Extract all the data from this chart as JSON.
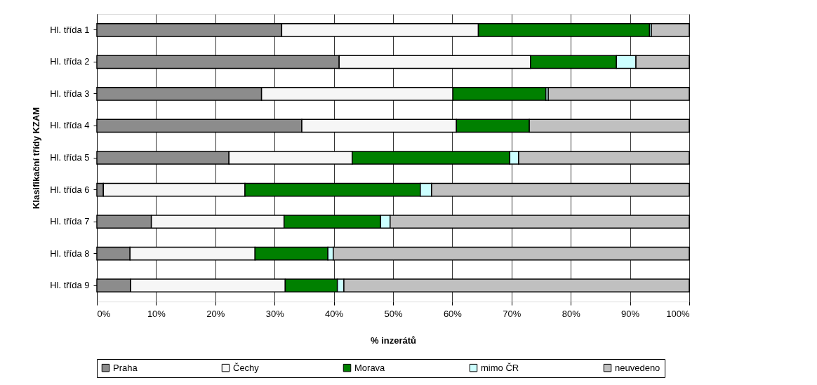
{
  "chart_data": {
    "type": "bar",
    "orientation": "horizontal",
    "stacked": true,
    "xlabel": "% inzerátů",
    "ylabel": "Klasifikační třídy KZAM",
    "categories": [
      "Hl. třída 1",
      "Hl. třída 2",
      "Hl. třída 3",
      "Hl. třída 4",
      "Hl. třída 5",
      "Hl. třída 6",
      "Hl. třída 7",
      "Hl. třída 8",
      "Hl. třída 9"
    ],
    "series": [
      {
        "name": "Praha",
        "color": "#8c8c8c",
        "values": [
          31.2,
          40.9,
          27.8,
          34.6,
          22.3,
          1.1,
          9.2,
          5.6,
          5.7
        ]
      },
      {
        "name": "Čechy",
        "color": "#f6f6f6",
        "values": [
          33.2,
          32.3,
          32.3,
          26.1,
          20.8,
          23.9,
          22.4,
          21.1,
          26.1
        ]
      },
      {
        "name": "Morava",
        "color": "#008000",
        "values": [
          28.9,
          14.5,
          15.7,
          12.3,
          26.6,
          29.6,
          16.3,
          12.3,
          8.8
        ]
      },
      {
        "name": "mimo ČR",
        "color": "#ccffff",
        "values": [
          0.3,
          3.3,
          0.4,
          null,
          1.5,
          1.9,
          1.6,
          0.9,
          1.1
        ]
      },
      {
        "name": "neuvedeno",
        "color": "#c0c0c0",
        "values": [
          6.4,
          9.0,
          23.8,
          27.0,
          28.8,
          43.5,
          50.5,
          60.1,
          58.3
        ]
      }
    ],
    "xlim": [
      0,
      100
    ],
    "xticks": [
      {
        "value": 0,
        "label": "0%"
      },
      {
        "value": 10,
        "label": "10%"
      },
      {
        "value": 20,
        "label": "20%"
      },
      {
        "value": 30,
        "label": "30%"
      },
      {
        "value": 40,
        "label": "40%"
      },
      {
        "value": 50,
        "label": "50%"
      },
      {
        "value": 60,
        "label": "60%"
      },
      {
        "value": 70,
        "label": "70%"
      },
      {
        "value": 80,
        "label": "80%"
      },
      {
        "value": 90,
        "label": "90%"
      },
      {
        "value": 100,
        "label": "100%"
      }
    ],
    "grid": "x",
    "legend": "bottom"
  }
}
